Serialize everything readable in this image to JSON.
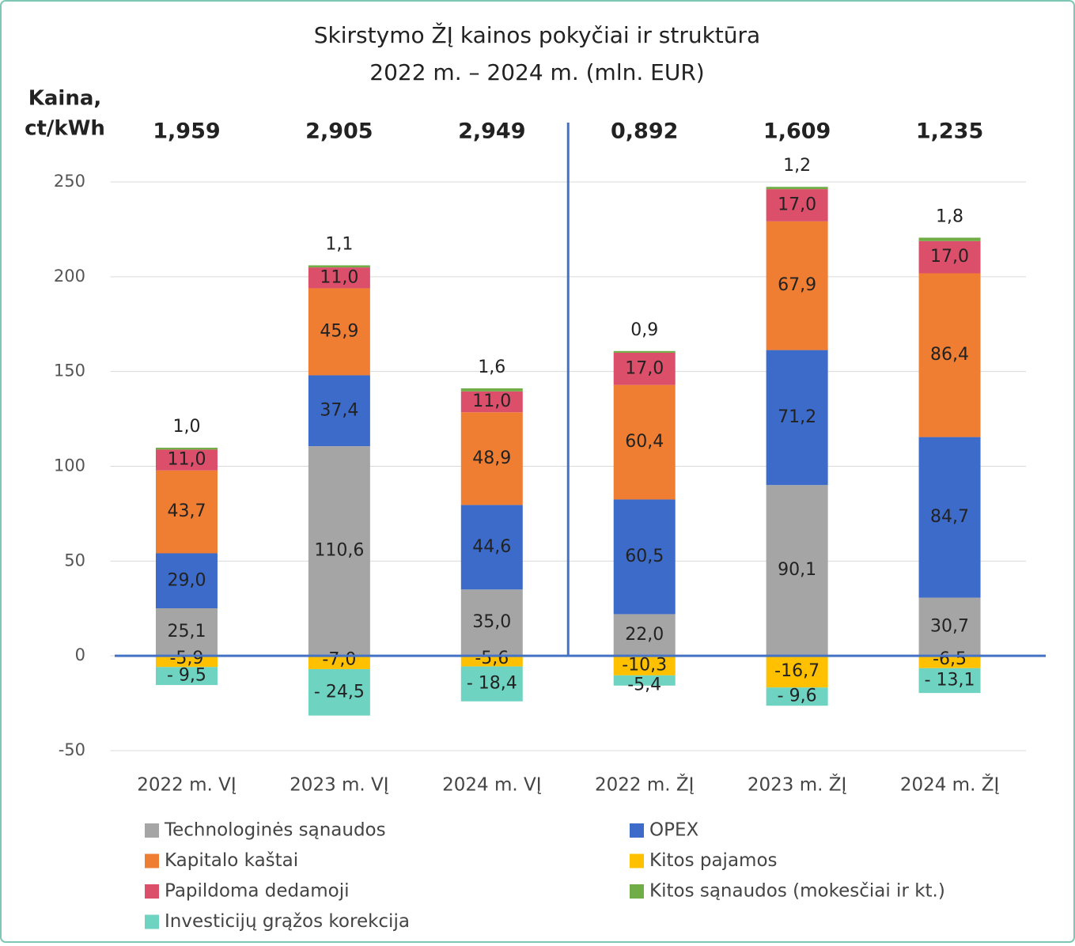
{
  "chart_data": {
    "type": "stacked_bar",
    "title": [
      "Skirstymo ŽĮ kainos pokyčiai ir struktūra",
      "2022 m. – 2024 m. (mln. EUR)"
    ],
    "price_axis_label": [
      "Kaina,",
      "ct/kWh"
    ],
    "prices": [
      "1,959",
      "2,905",
      "2,949",
      "0,892",
      "1,609",
      "1,235"
    ],
    "categories": [
      "2022 m. VĮ",
      "2023 m. VĮ",
      "2024 m. VĮ",
      "2022 m. ŽĮ",
      "2023 m. ŽĮ",
      "2024 m. ŽĮ"
    ],
    "series": [
      {
        "name": "Technologinės sąnaudos",
        "color": "#a5a5a5",
        "values": [
          25.1,
          110.6,
          35.0,
          22.0,
          90.1,
          30.7
        ],
        "value_labels": [
          "25,1",
          "110,6",
          "35,0",
          "22,0",
          "90,1",
          "30,7"
        ]
      },
      {
        "name": "OPEX",
        "color": "#3d6bc9",
        "values": [
          29.0,
          37.4,
          44.6,
          60.5,
          71.2,
          84.7
        ],
        "value_labels": [
          "29,0",
          "37,4",
          "44,6",
          "60,5",
          "71,2",
          "84,7"
        ]
      },
      {
        "name": "Kapitalo kaštai",
        "color": "#ef7e33",
        "values": [
          43.7,
          45.9,
          48.9,
          60.4,
          67.9,
          86.4
        ],
        "value_labels": [
          "43,7",
          "45,9",
          "48,9",
          "60,4",
          "67,9",
          "86,4"
        ]
      },
      {
        "name": "Kitos pajamos",
        "color": "#ffc000",
        "values": [
          -5.9,
          -7.0,
          -5.6,
          -10.3,
          -16.7,
          -6.5
        ],
        "value_labels": [
          "-5,9",
          "-7,0",
          "-5,6",
          "-10,3",
          "-16,7",
          "-6,5"
        ]
      },
      {
        "name": "Papildoma dedamoji",
        "color": "#dc4f6b",
        "values": [
          11.0,
          11.0,
          11.0,
          17.0,
          17.0,
          17.0
        ],
        "value_labels": [
          "11,0",
          "11,0",
          "11,0",
          "17,0",
          "17,0",
          "17,0"
        ]
      },
      {
        "name": "Kitos sąnaudos (mokesčiai ir kt.)",
        "color": "#70ad47",
        "values": [
          1.0,
          1.1,
          1.6,
          0.9,
          1.2,
          1.8
        ],
        "value_labels": [
          "1,0",
          "1,1",
          "1,6",
          "0,9",
          "1,2",
          "1,8"
        ]
      },
      {
        "name": "Investicijų grąžos korekcija",
        "color": "#6fd3c1",
        "values": [
          -9.5,
          -24.5,
          -18.4,
          -5.4,
          -9.6,
          -13.1
        ],
        "value_labels": [
          "- 9,5",
          "- 24,5",
          "- 18,4",
          "-5,4",
          "- 9,6",
          "- 13,1"
        ]
      }
    ],
    "ylim": [
      -50,
      250
    ],
    "yticks": [
      -50,
      0,
      50,
      100,
      150,
      200,
      250
    ],
    "grid": true
  }
}
